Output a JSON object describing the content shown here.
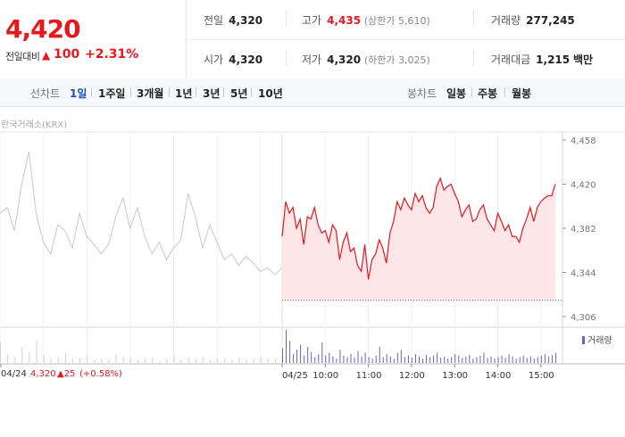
{
  "quote": {
    "price": "4,420",
    "change_label": "전일대비",
    "change_arrow": "▲",
    "change_value": "100",
    "change_pct": "+2.31%",
    "color_up": "#e5171f"
  },
  "info": {
    "prev_close": {
      "label": "전일",
      "value": "4,320"
    },
    "high": {
      "label": "고가",
      "value": "4,435",
      "sub": "(상한가 5,610)"
    },
    "volume": {
      "label": "거래량",
      "value": "277,245"
    },
    "open": {
      "label": "시가",
      "value": "4,320"
    },
    "low": {
      "label": "저가",
      "value": "4,320",
      "sub": "(하한가 3,025)"
    },
    "amount": {
      "label": "거래대금",
      "value": "1,215",
      "unit": "백만"
    }
  },
  "tabs": {
    "line_label": "선차트",
    "line_periods": [
      "1일",
      "1주일",
      "3개월",
      "1년",
      "3년",
      "5년",
      "10년"
    ],
    "active_period": "1일",
    "candle_label": "봉차트",
    "candle_periods": [
      "일봉",
      "주봉",
      "월봉"
    ]
  },
  "source": "한국거래소(KRX)",
  "chart_data": {
    "type": "line",
    "ylim": [
      4306,
      4458
    ],
    "y_ticks": [
      "4,458",
      "4,420",
      "4,382",
      "4,344",
      "4,306"
    ],
    "prev_close": 4320,
    "previous_day": {
      "date": "04/24",
      "times": [
        "09:00",
        "09:10",
        "09:20",
        "09:30",
        "09:40",
        "09:50",
        "10:00",
        "10:10",
        "10:20",
        "10:30",
        "10:40",
        "10:50",
        "11:00",
        "11:10",
        "11:20",
        "11:30",
        "11:40",
        "11:50",
        "12:00",
        "12:10",
        "12:20",
        "12:30",
        "12:40",
        "12:50",
        "13:00",
        "13:10",
        "13:20",
        "13:30",
        "13:40",
        "13:50",
        "14:00",
        "14:10",
        "14:20",
        "14:30",
        "14:40",
        "14:50",
        "15:00",
        "15:10",
        "15:20",
        "15:30"
      ],
      "values": [
        4395,
        4400,
        4380,
        4420,
        4448,
        4395,
        4370,
        4360,
        4385,
        4380,
        4365,
        4395,
        4375,
        4368,
        4360,
        4368,
        4392,
        4408,
        4382,
        4400,
        4375,
        4360,
        4370,
        4355,
        4365,
        4372,
        4412,
        4392,
        4365,
        4385,
        4370,
        4355,
        4360,
        4350,
        4358,
        4352,
        4345,
        4348,
        4342,
        4348
      ],
      "close_label": "04/24",
      "close_price": "4,320",
      "close_change": "▲25",
      "close_pct": "(+0.58%)"
    },
    "current_day": {
      "date": "04/25",
      "times": [
        "09:00",
        "09:05",
        "09:10",
        "09:15",
        "09:20",
        "09:25",
        "09:30",
        "09:35",
        "09:40",
        "09:45",
        "09:50",
        "09:55",
        "10:00",
        "10:05",
        "10:10",
        "10:15",
        "10:20",
        "10:25",
        "10:30",
        "10:35",
        "10:40",
        "10:45",
        "10:50",
        "10:55",
        "11:00",
        "11:05",
        "11:10",
        "11:15",
        "11:20",
        "11:25",
        "11:30",
        "11:35",
        "11:40",
        "11:45",
        "11:50",
        "11:55",
        "12:00",
        "12:05",
        "12:10",
        "12:15",
        "12:20",
        "12:25",
        "12:30",
        "12:35",
        "12:40",
        "12:45",
        "12:50",
        "12:55",
        "13:00",
        "13:05",
        "13:10",
        "13:15",
        "13:20",
        "13:25",
        "13:30",
        "13:35",
        "13:40",
        "13:45",
        "13:50",
        "13:55",
        "14:00",
        "14:05",
        "14:10",
        "14:15",
        "14:20",
        "14:25",
        "14:30",
        "14:35",
        "14:40",
        "14:45",
        "14:50",
        "14:55",
        "15:00",
        "15:05",
        "15:10",
        "15:15",
        "15:20"
      ],
      "values": [
        4375,
        4405,
        4395,
        4400,
        4382,
        4390,
        4368,
        4392,
        4390,
        4400,
        4385,
        4378,
        4380,
        4370,
        4385,
        4380,
        4355,
        4370,
        4378,
        4362,
        4365,
        4350,
        4345,
        4368,
        4338,
        4355,
        4360,
        4372,
        4365,
        4352,
        4378,
        4388,
        4405,
        4398,
        4408,
        4402,
        4398,
        4412,
        4405,
        4410,
        4400,
        4395,
        4400,
        4418,
        4425,
        4415,
        4418,
        4420,
        4412,
        4405,
        4392,
        4398,
        4402,
        4388,
        4390,
        4398,
        4402,
        4390,
        4385,
        4380,
        4395,
        4388,
        4380,
        4385,
        4375,
        4375,
        4370,
        4382,
        4390,
        4400,
        4388,
        4400,
        4405,
        4408,
        4410,
        4410,
        4420
      ]
    },
    "x_tick_labels": [
      "04/25",
      "10:00",
      "11:00",
      "12:00",
      "13:00",
      "14:00",
      "15:00"
    ],
    "volume_label": "거래량",
    "volume_prev": [
      28,
      12,
      8,
      22,
      15,
      30,
      10,
      6,
      8,
      14,
      5,
      7,
      10,
      4,
      6,
      5,
      12,
      9,
      6,
      4,
      5,
      7,
      3,
      6,
      9,
      4,
      7,
      5,
      8,
      4,
      6,
      5,
      4,
      7,
      5,
      6,
      8,
      5,
      6,
      7
    ],
    "volume_current": [
      20,
      45,
      30,
      12,
      18,
      25,
      10,
      22,
      15,
      8,
      12,
      28,
      10,
      14,
      9,
      6,
      18,
      10,
      8,
      12,
      7,
      16,
      9,
      14,
      8,
      6,
      10,
      22,
      8,
      12,
      9,
      6,
      14,
      18,
      8,
      10,
      7,
      12,
      9,
      6,
      11,
      8,
      10,
      14,
      7,
      9,
      6,
      8,
      12,
      10,
      7,
      9,
      11,
      6,
      8,
      10,
      14,
      7,
      9,
      6,
      8,
      10,
      7,
      12,
      9,
      6,
      8,
      10,
      7,
      9,
      6,
      8,
      10,
      12,
      9,
      11,
      14
    ],
    "colors": {
      "prev_line": "#c8c8c8",
      "current_line": "#e5171f",
      "fill": "#fde6e7",
      "volume": "#6b64b6"
    }
  }
}
